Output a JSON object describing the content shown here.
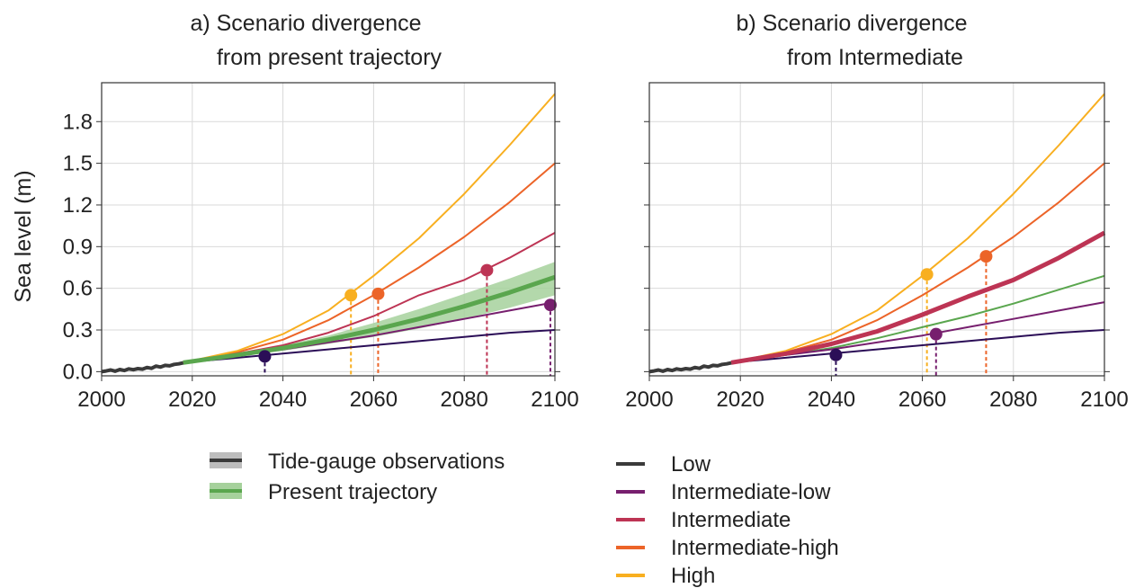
{
  "figure": {
    "ylabel": "Sea level (m)",
    "legend": {
      "observations": "Tide-gauge observations",
      "present": "Present trajectory",
      "low": "Low",
      "intlow": "Intermediate-low",
      "int": "Intermediate",
      "inthigh": "Intermediate-high",
      "high": "High"
    }
  },
  "colors": {
    "observations": "#3a3a3a",
    "present": "#5aa64e",
    "present_band": "#a6d19c",
    "low": "#2b0e57",
    "intlow": "#771f6e",
    "int": "#bd3454",
    "inthigh": "#ec6428",
    "high": "#f8af20",
    "grid": "#d9d9d9"
  },
  "chart_data": [
    {
      "type": "line",
      "title_line1": "a)   Scenario divergence",
      "title_line2": "from present trajectory",
      "xlim": [
        2000,
        2100
      ],
      "ylim": [
        -0.03,
        2.08
      ],
      "xticks": [
        "2000",
        "2020",
        "2040",
        "2060",
        "2080",
        "2100"
      ],
      "yticks": [
        "0.0",
        "0.3",
        "0.6",
        "0.9",
        "1.2",
        "1.5",
        "1.8"
      ],
      "grid": true,
      "observations": {
        "x": [
          2000,
          2001,
          2002,
          2003,
          2004,
          2005,
          2006,
          2007,
          2008,
          2009,
          2010,
          2011,
          2012,
          2013,
          2014,
          2015,
          2016,
          2017,
          2018
        ],
        "y": [
          0.0,
          0.005,
          0.012,
          0.003,
          0.015,
          0.008,
          0.02,
          0.014,
          0.022,
          0.018,
          0.03,
          0.024,
          0.04,
          0.033,
          0.045,
          0.042,
          0.052,
          0.056,
          0.063
        ]
      },
      "present": {
        "x": [
          2018,
          2030,
          2040,
          2050,
          2060,
          2070,
          2080,
          2090,
          2100
        ],
        "y": [
          0.065,
          0.12,
          0.17,
          0.23,
          0.3,
          0.38,
          0.47,
          0.57,
          0.68
        ],
        "band_low": [
          0.065,
          0.11,
          0.15,
          0.2,
          0.25,
          0.31,
          0.38,
          0.46,
          0.55
        ],
        "band_high": [
          0.065,
          0.13,
          0.19,
          0.26,
          0.35,
          0.45,
          0.56,
          0.67,
          0.79
        ]
      },
      "series": [
        {
          "key": "low",
          "x": [
            2018,
            2030,
            2040,
            2050,
            2060,
            2070,
            2080,
            2090,
            2100
          ],
          "y": [
            0.065,
            0.1,
            0.13,
            0.16,
            0.19,
            0.22,
            0.25,
            0.28,
            0.3
          ]
        },
        {
          "key": "intlow",
          "x": [
            2018,
            2030,
            2040,
            2050,
            2060,
            2070,
            2080,
            2090,
            2100
          ],
          "y": [
            0.065,
            0.12,
            0.16,
            0.21,
            0.26,
            0.32,
            0.38,
            0.44,
            0.5
          ]
        },
        {
          "key": "int",
          "x": [
            2018,
            2030,
            2040,
            2050,
            2060,
            2070,
            2080,
            2090,
            2100
          ],
          "y": [
            0.065,
            0.13,
            0.19,
            0.28,
            0.4,
            0.55,
            0.66,
            0.82,
            1.0
          ]
        },
        {
          "key": "inthigh",
          "x": [
            2018,
            2030,
            2040,
            2050,
            2060,
            2070,
            2080,
            2090,
            2100
          ],
          "y": [
            0.065,
            0.14,
            0.23,
            0.37,
            0.55,
            0.75,
            0.97,
            1.22,
            1.5
          ]
        },
        {
          "key": "high",
          "x": [
            2018,
            2030,
            2040,
            2050,
            2060,
            2070,
            2080,
            2090,
            2100
          ],
          "y": [
            0.065,
            0.15,
            0.27,
            0.44,
            0.69,
            0.96,
            1.28,
            1.63,
            2.0
          ]
        }
      ],
      "markers": [
        {
          "key": "low",
          "x": 2036,
          "y": 0.11
        },
        {
          "key": "high",
          "x": 2055,
          "y": 0.55
        },
        {
          "key": "inthigh",
          "x": 2061,
          "y": 0.56
        },
        {
          "key": "int",
          "x": 2085,
          "y": 0.73
        },
        {
          "key": "intlow",
          "x": 2099,
          "y": 0.48
        }
      ]
    },
    {
      "type": "line",
      "title_line1": "b)   Scenario divergence",
      "title_line2": "from Intermediate",
      "xlim": [
        2000,
        2100
      ],
      "ylim": [
        -0.03,
        2.08
      ],
      "xticks": [
        "2000",
        "2020",
        "2040",
        "2060",
        "2080",
        "2100"
      ],
      "yticks": [
        "0.0",
        "0.3",
        "0.6",
        "0.9",
        "1.2",
        "1.5",
        "1.8"
      ],
      "grid": true,
      "observations": {
        "x": [
          2000,
          2001,
          2002,
          2003,
          2004,
          2005,
          2006,
          2007,
          2008,
          2009,
          2010,
          2011,
          2012,
          2013,
          2014,
          2015,
          2016,
          2017,
          2018
        ],
        "y": [
          0.0,
          0.005,
          0.012,
          0.003,
          0.015,
          0.008,
          0.02,
          0.014,
          0.022,
          0.018,
          0.03,
          0.024,
          0.04,
          0.033,
          0.045,
          0.042,
          0.052,
          0.056,
          0.063
        ]
      },
      "present": {
        "x": [
          2018,
          2030,
          2040,
          2050,
          2060,
          2070,
          2080,
          2090,
          2100
        ],
        "y": [
          0.065,
          0.12,
          0.17,
          0.24,
          0.32,
          0.4,
          0.49,
          0.59,
          0.69
        ]
      },
      "series": [
        {
          "key": "low",
          "x": [
            2018,
            2030,
            2040,
            2050,
            2060,
            2070,
            2080,
            2090,
            2100
          ],
          "y": [
            0.065,
            0.1,
            0.13,
            0.16,
            0.19,
            0.22,
            0.25,
            0.28,
            0.3
          ]
        },
        {
          "key": "intlow",
          "x": [
            2018,
            2030,
            2040,
            2050,
            2060,
            2070,
            2080,
            2090,
            2100
          ],
          "y": [
            0.065,
            0.12,
            0.16,
            0.21,
            0.26,
            0.32,
            0.38,
            0.44,
            0.5
          ]
        },
        {
          "key": "inthigh",
          "x": [
            2018,
            2030,
            2040,
            2050,
            2060,
            2070,
            2080,
            2090,
            2100
          ],
          "y": [
            0.065,
            0.14,
            0.23,
            0.37,
            0.55,
            0.75,
            0.97,
            1.22,
            1.5
          ]
        },
        {
          "key": "high",
          "x": [
            2018,
            2030,
            2040,
            2050,
            2060,
            2070,
            2080,
            2090,
            2100
          ],
          "y": [
            0.065,
            0.15,
            0.27,
            0.44,
            0.69,
            0.96,
            1.28,
            1.63,
            2.0
          ]
        },
        {
          "key": "int",
          "x": [
            2018,
            2030,
            2040,
            2050,
            2060,
            2070,
            2080,
            2090,
            2100
          ],
          "y": [
            0.065,
            0.13,
            0.2,
            0.29,
            0.41,
            0.54,
            0.66,
            0.82,
            1.0
          ],
          "thick": true
        }
      ],
      "markers": [
        {
          "key": "low",
          "x": 2041,
          "y": 0.12
        },
        {
          "key": "intlow",
          "x": 2063,
          "y": 0.27
        },
        {
          "key": "high",
          "x": 2061,
          "y": 0.7
        },
        {
          "key": "inthigh",
          "x": 2074,
          "y": 0.83
        }
      ]
    }
  ]
}
